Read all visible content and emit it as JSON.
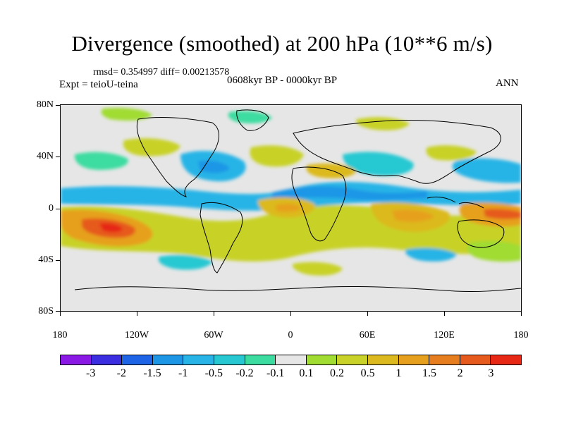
{
  "header": {
    "title": "Divergence (smoothed) at 200 hPa (10**6 m/s)",
    "stats": "rmsd= 0.354997 diff= 0.00213578",
    "expt": "Expt = teioU-teina",
    "period": "0608kyr BP - 0000kyr BP",
    "season": "ANN"
  },
  "axes": {
    "lat_labels": [
      "80N",
      "40N",
      "0",
      "40S",
      "80S"
    ],
    "lon_labels": [
      "180",
      "120W",
      "60W",
      "0",
      "60E",
      "120E",
      "180"
    ]
  },
  "colorbar": {
    "colors": [
      "#8b19e6",
      "#3a2ee0",
      "#1e64e6",
      "#1e96e6",
      "#28b4e6",
      "#28c8d2",
      "#3cdca0",
      "#e6e6e6",
      "#a0dc32",
      "#c8d228",
      "#dcb91e",
      "#e6a01e",
      "#e67d1e",
      "#e65a1e",
      "#e62814"
    ],
    "labels": [
      "-3",
      "-2",
      "-1.5",
      "-1",
      "-0.5",
      "-0.2",
      "-0.1",
      "0.1",
      "0.2",
      "0.5",
      "1",
      "1.5",
      "2",
      "3"
    ]
  }
}
